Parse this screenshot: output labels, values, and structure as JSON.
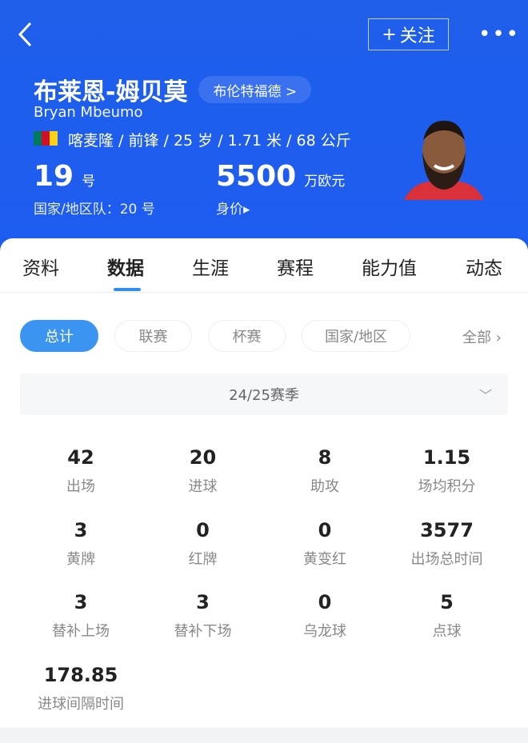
{
  "header": {
    "follow_label": "关注",
    "name_cn": "布莱恩-姆贝莫",
    "team": "布伦特福德 >",
    "name_en": "Bryan Mbeumo",
    "info": "喀麦隆 / 前锋 / 25 岁 / 1.71 米 / 68 公斤",
    "shirt_number": "19",
    "shirt_unit": "号",
    "national_number": "国家/地区队：20 号",
    "market_value": "5500",
    "market_value_unit": "万欧元",
    "market_value_label": "身价▸",
    "flag_colors": [
      "#007a5e",
      "#ce1126",
      "#fcd116"
    ],
    "bg_color": "#1f5fea"
  },
  "tabs": [
    {
      "label": "资料"
    },
    {
      "label": "数据",
      "active": true
    },
    {
      "label": "生涯"
    },
    {
      "label": "赛程"
    },
    {
      "label": "能力值"
    },
    {
      "label": "动态"
    }
  ],
  "filters": [
    {
      "label": "总计",
      "active": true
    },
    {
      "label": "联赛"
    },
    {
      "label": "杯赛"
    },
    {
      "label": "国家/地区"
    }
  ],
  "filter_all": "全部 ›",
  "season": "24/25赛季",
  "stats": [
    {
      "value": "42",
      "label": "出场"
    },
    {
      "value": "20",
      "label": "进球"
    },
    {
      "value": "8",
      "label": "助攻"
    },
    {
      "value": "1.15",
      "label": "场均积分"
    },
    {
      "value": "3",
      "label": "黄牌"
    },
    {
      "value": "0",
      "label": "红牌"
    },
    {
      "value": "0",
      "label": "黄变红"
    },
    {
      "value": "3577",
      "label": "出场总时间"
    },
    {
      "value": "3",
      "label": "替补上场"
    },
    {
      "value": "3",
      "label": "替补下场"
    },
    {
      "value": "0",
      "label": "乌龙球"
    },
    {
      "value": "5",
      "label": "点球"
    },
    {
      "value": "178.85",
      "label": "进球间隔时间"
    }
  ],
  "accent_color": "#3b95f0"
}
